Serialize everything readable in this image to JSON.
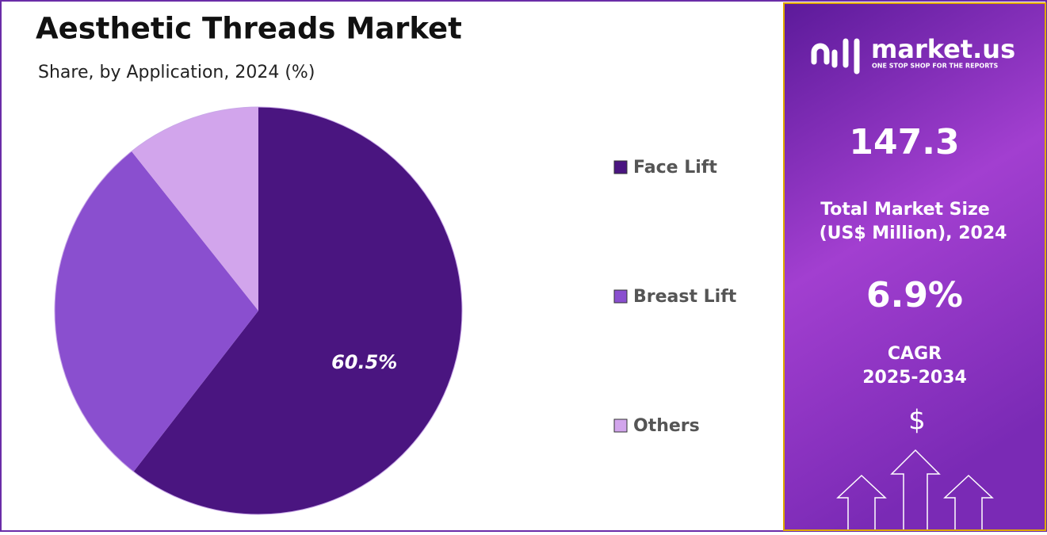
{
  "chart_data": {
    "type": "pie",
    "title": "Aesthetic Threads Market",
    "subtitle": "Share, by Application, 2024 (%)",
    "categories": [
      "Face Lift",
      "Breast Lift",
      "Others"
    ],
    "values": [
      60.5,
      28.8,
      10.7
    ],
    "value_labels": [
      "60.5%",
      null,
      null
    ],
    "colors": [
      "#4a1580",
      "#8a4fcf",
      "#d2a5ec"
    ],
    "legend": "right"
  },
  "panel": {
    "brand": "market.us",
    "tagline": "ONE STOP SHOP FOR THE REPORTS",
    "market_size": "147.3",
    "market_size_label": [
      "Total Market Size",
      "(US$ Million), 2024"
    ],
    "cagr": "6.9%",
    "cagr_label": [
      "CAGR",
      "2025-2034"
    ],
    "currency_symbol": "$"
  }
}
